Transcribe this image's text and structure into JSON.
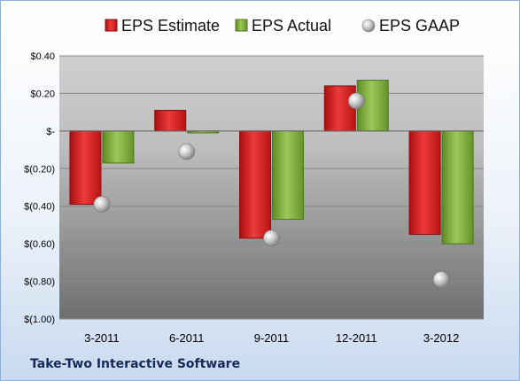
{
  "chart_data": {
    "type": "bar",
    "categories": [
      "3-2011",
      "6-2011",
      "9-2011",
      "12-2011",
      "3-2012"
    ],
    "series": [
      {
        "name": "EPS Estimate",
        "kind": "bar",
        "color": "#d42020",
        "values": [
          -0.39,
          0.11,
          -0.57,
          0.24,
          -0.55
        ]
      },
      {
        "name": "EPS Actual",
        "kind": "bar",
        "color": "#7fb03c",
        "values": [
          -0.17,
          -0.01,
          -0.47,
          0.27,
          -0.6
        ]
      },
      {
        "name": "EPS GAAP",
        "kind": "marker",
        "color": "#a9a9a9",
        "values": [
          -0.39,
          -0.11,
          -0.57,
          0.16,
          -0.79
        ]
      }
    ],
    "y_ticks": [
      "$0.40",
      "$0.20",
      "$-",
      "$(0.20)",
      "$(0.40)",
      "$(0.60)",
      "$(0.80)",
      "$(1.00)"
    ],
    "y_tick_values": [
      0.4,
      0.2,
      0,
      -0.2,
      -0.4,
      -0.6,
      -0.8,
      -1.0
    ],
    "ylim": [
      -1.0,
      0.4
    ],
    "grid": true,
    "legend_position": "top"
  },
  "footer": {
    "company": "Take-Two Interactive Software"
  }
}
